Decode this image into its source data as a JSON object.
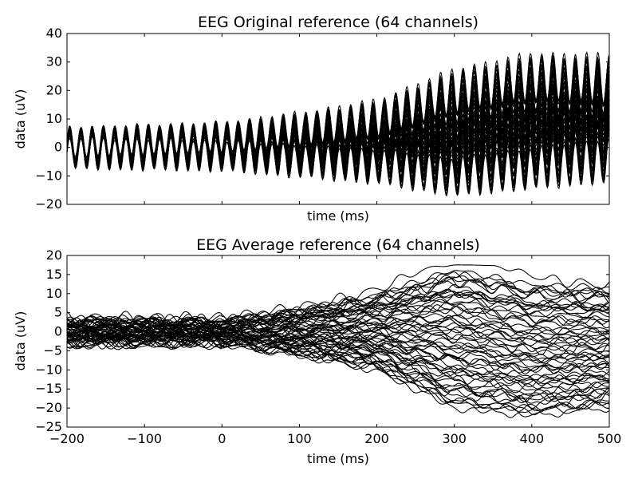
{
  "chart_data": [
    {
      "type": "line",
      "title": "EEG Original reference (64 channels)",
      "xlabel": "time (ms)",
      "ylabel": "data (uV)",
      "xlim": [
        -200,
        500
      ],
      "ylim": [
        -20,
        40
      ],
      "x_ticks": [
        -200,
        -100,
        0,
        100,
        200,
        300,
        400,
        500
      ],
      "y_ticks": [
        -20,
        -10,
        0,
        10,
        20,
        30,
        40
      ],
      "show_x_tick_labels": false,
      "grid": false,
      "line_color": "#000000",
      "channels": 64,
      "oscillation_period_ms": 14.5,
      "series_summary": {
        "oscillation_amplitude_uv": [
          [
            -200,
            5.5
          ],
          [
            0,
            5.5
          ],
          [
            200,
            6.5
          ],
          [
            300,
            7.5
          ],
          [
            500,
            8.5
          ]
        ],
        "channel_offset_range_uv": [
          [
            -200,
            [
              -1,
              1
            ]
          ],
          [
            0,
            [
              -2,
              3
            ]
          ],
          [
            100,
            [
              -4,
              6
            ]
          ],
          [
            200,
            [
              -6,
              10
            ]
          ],
          [
            300,
            [
              -10,
              20
            ]
          ],
          [
            400,
            [
              -7,
              25
            ]
          ],
          [
            500,
            [
              -4,
              24
            ]
          ]
        ]
      }
    },
    {
      "type": "line",
      "title": "EEG Average reference (64 channels)",
      "xlabel": "time (ms)",
      "ylabel": "data (uV)",
      "xlim": [
        -200,
        500
      ],
      "ylim": [
        -25,
        20
      ],
      "x_ticks": [
        -200,
        -100,
        0,
        100,
        200,
        300,
        400,
        500
      ],
      "y_ticks": [
        -25,
        -20,
        -15,
        -10,
        -5,
        0,
        5,
        10,
        15,
        20
      ],
      "show_x_tick_labels": true,
      "grid": false,
      "line_color": "#000000",
      "channels": 64,
      "series_summary": {
        "channel_spread_uv": [
          [
            -200,
            [
              -3,
              3
            ]
          ],
          [
            0,
            [
              -3,
              3
            ]
          ],
          [
            100,
            [
              -6,
              6
            ]
          ],
          [
            200,
            [
              -10,
              10
            ]
          ],
          [
            300,
            [
              -20,
              17
            ]
          ],
          [
            400,
            [
              -22,
              13
            ]
          ],
          [
            500,
            [
              -20,
              12
            ]
          ]
        ],
        "max_channel_peak_uv": 17.5,
        "max_channel_peak_time_ms": 320
      }
    }
  ]
}
